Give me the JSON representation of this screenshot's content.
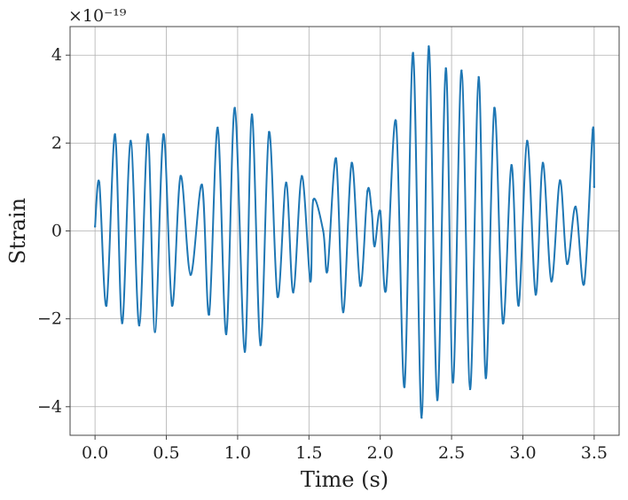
{
  "chart_data": {
    "type": "line",
    "title": "",
    "xlabel": "Time (s)",
    "ylabel": "Strain",
    "offset_label": "×10⁻¹⁹",
    "xlim": [
      -0.175,
      3.675
    ],
    "ylim": [
      -4.65,
      4.65
    ],
    "xticks": [
      0.0,
      0.5,
      1.0,
      1.5,
      2.0,
      2.5,
      3.0,
      3.5
    ],
    "xtick_labels": [
      "0.0",
      "0.5",
      "1.0",
      "1.5",
      "2.0",
      "2.5",
      "3.0",
      "3.5"
    ],
    "yticks": [
      -4,
      -2,
      0,
      2,
      4
    ],
    "ytick_labels": [
      "−4",
      "−2",
      "0",
      "2",
      "4"
    ],
    "grid": true,
    "line_color": "#1f77b4",
    "series": [
      {
        "x": [
          0.0,
          0.03,
          0.08,
          0.14,
          0.19,
          0.25,
          0.31,
          0.37,
          0.42,
          0.48,
          0.54,
          0.6,
          0.67,
          0.75,
          0.8,
          0.86,
          0.92,
          0.98,
          1.05,
          1.1,
          1.16,
          1.22,
          1.28,
          1.34,
          1.39,
          1.45,
          1.51,
          1.53,
          1.6,
          1.63,
          1.69,
          1.74,
          1.8,
          1.86,
          1.91,
          1.94,
          1.96,
          2.0,
          2.04,
          2.11,
          2.17,
          2.23,
          2.29,
          2.34,
          2.4,
          2.46,
          2.51,
          2.57,
          2.63,
          2.69,
          2.74,
          2.8,
          2.86,
          2.92,
          2.97,
          3.03,
          3.09,
          3.14,
          3.2,
          3.26,
          3.31,
          3.37,
          3.43,
          3.49,
          3.5
        ],
        "y": [
          0.1,
          1.1,
          -1.7,
          2.2,
          -2.1,
          2.05,
          -2.15,
          2.2,
          -2.3,
          2.2,
          -1.7,
          1.25,
          -1.0,
          1.05,
          -1.9,
          2.35,
          -2.35,
          2.8,
          -2.75,
          2.65,
          -2.6,
          2.25,
          -1.5,
          1.1,
          -1.4,
          1.25,
          -1.15,
          0.7,
          0.0,
          -0.9,
          1.65,
          -1.85,
          1.55,
          -1.25,
          0.9,
          0.45,
          -0.35,
          0.45,
          -1.35,
          2.5,
          -3.55,
          4.05,
          -4.25,
          4.2,
          -3.85,
          3.7,
          -3.45,
          3.65,
          -3.6,
          3.5,
          -3.35,
          2.8,
          -2.1,
          1.5,
          -1.7,
          2.05,
          -1.45,
          1.55,
          -1.15,
          1.15,
          -0.75,
          0.55,
          -1.2,
          2.3,
          1.0
        ]
      }
    ]
  }
}
